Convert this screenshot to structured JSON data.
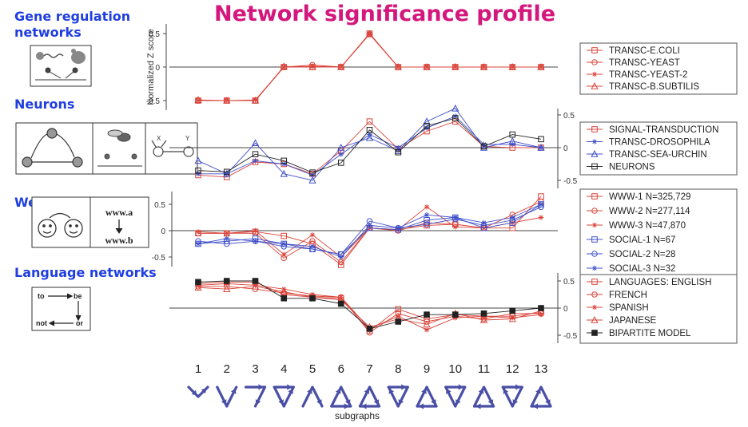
{
  "title": "Network significance profile",
  "categories": [
    {
      "label_lines": [
        "Gene regulation",
        "networks"
      ]
    },
    {
      "label_lines": [
        "Neurons"
      ]
    },
    {
      "label_lines": [
        "Web and social"
      ]
    },
    {
      "label_lines": [
        "Language networks"
      ]
    }
  ],
  "icon_text": {
    "www_top": "www.a",
    "www_bottom": "www.b",
    "lang_to": "to",
    "lang_be": "be",
    "lang_not": "not",
    "lang_or": "or",
    "neuron_x": "X",
    "neuron_y": "Y"
  },
  "colors": {
    "title": "#d4177c",
    "category": "#1f3ee0",
    "red": "#d9443a",
    "blue": "#3f4fc8",
    "black": "#222222",
    "axis": "#444444"
  },
  "chart_data": [
    {
      "type": "line",
      "panel": "Gene regulation networks",
      "ylabel": "Normalized Z score",
      "ylim": [
        -0.6,
        0.6
      ],
      "yticks": [
        -0.5,
        0,
        0.5
      ],
      "x": [
        1,
        2,
        3,
        4,
        5,
        6,
        7,
        8,
        9,
        10,
        11,
        12,
        13
      ],
      "legend_position": "right",
      "series": [
        {
          "name": "TRANSC-E.COLI",
          "marker": "square",
          "color": "#d9443a",
          "values": [
            -0.5,
            -0.5,
            -0.5,
            0,
            0,
            0,
            0.5,
            0,
            0,
            0,
            0,
            0,
            0
          ]
        },
        {
          "name": "TRANSC-YEAST",
          "marker": "circle",
          "color": "#d9443a",
          "values": [
            -0.5,
            -0.5,
            -0.5,
            0,
            0.03,
            0,
            0.49,
            0,
            0,
            0,
            0,
            0,
            0
          ]
        },
        {
          "name": "TRANSC-YEAST-2",
          "marker": "star",
          "color": "#d9443a",
          "values": [
            -0.5,
            -0.5,
            -0.49,
            0,
            0.01,
            0,
            0.5,
            0,
            0,
            0,
            0,
            0,
            0
          ]
        },
        {
          "name": "TRANSC-B.SUBTILIS",
          "marker": "triangle",
          "color": "#d9443a",
          "values": [
            -0.49,
            -0.5,
            -0.5,
            0.01,
            0,
            0,
            0.49,
            0,
            0,
            0,
            0,
            0,
            0
          ]
        }
      ]
    },
    {
      "type": "line",
      "panel": "Neurons",
      "ylim": [
        -0.55,
        0.6
      ],
      "yticks": [
        -0.5,
        0,
        0.5
      ],
      "x": [
        1,
        2,
        3,
        4,
        5,
        6,
        7,
        8,
        9,
        10,
        11,
        12,
        13
      ],
      "legend_position": "right",
      "series": [
        {
          "name": "SIGNAL-TRANSDUCTION",
          "marker": "square",
          "color": "#d9443a",
          "values": [
            -0.42,
            -0.45,
            -0.22,
            -0.25,
            -0.4,
            -0.05,
            0.4,
            -0.02,
            0.25,
            0.4,
            0.02,
            0,
            0
          ]
        },
        {
          "name": "TRANSC-DROSOPHILA",
          "marker": "star",
          "color": "#3f4fc8",
          "values": [
            -0.4,
            -0.4,
            -0.2,
            -0.25,
            -0.42,
            -0.1,
            0.2,
            0,
            0.3,
            0.48,
            0.05,
            0.05,
            0
          ]
        },
        {
          "name": "TRANSC-SEA-URCHIN",
          "marker": "triangle",
          "color": "#3f4fc8",
          "values": [
            -0.2,
            -0.4,
            0.07,
            -0.4,
            -0.5,
            0,
            0.15,
            -0.05,
            0.4,
            0.6,
            0,
            0.1,
            0
          ]
        },
        {
          "name": "NEURONS",
          "marker": "square",
          "color": "#222222",
          "values": [
            -0.35,
            -0.37,
            -0.1,
            -0.2,
            -0.38,
            -0.23,
            0.27,
            -0.07,
            0.33,
            0.45,
            0.02,
            0.2,
            0.13
          ]
        }
      ]
    },
    {
      "type": "line",
      "panel": "Web and social",
      "ylim": [
        -0.65,
        0.8
      ],
      "yticks": [
        -0.5,
        0,
        0.5
      ],
      "x": [
        1,
        2,
        3,
        4,
        5,
        6,
        7,
        8,
        9,
        10,
        11,
        12,
        13
      ],
      "legend_position": "right",
      "series": [
        {
          "name": "WWW-1 N=325,729",
          "marker": "square",
          "color": "#d9443a",
          "values": [
            -0.05,
            -0.05,
            -0.02,
            -0.1,
            -0.25,
            -0.65,
            0.05,
            0.02,
            0.1,
            0.12,
            0.05,
            0.05,
            0.65
          ]
        },
        {
          "name": "WWW-2 N=277,114",
          "marker": "circle",
          "color": "#d9443a",
          "values": [
            -0.05,
            -0.05,
            -0.05,
            -0.52,
            -0.2,
            -0.6,
            0.05,
            0,
            0.15,
            0.12,
            0.05,
            0.3,
            0.55
          ]
        },
        {
          "name": "WWW-3 N=47,870",
          "marker": "star",
          "color": "#d9443a",
          "values": [
            -0.02,
            -0.05,
            0,
            -0.45,
            -0.08,
            -0.5,
            0.05,
            0.02,
            0.45,
            0.07,
            0.05,
            0.15,
            0.25
          ]
        },
        {
          "name": "SOCIAL-1 N=67",
          "marker": "square",
          "color": "#3f4fc8",
          "values": [
            -0.25,
            -0.2,
            -0.15,
            -0.25,
            -0.35,
            -0.45,
            0.05,
            0.02,
            0.2,
            0.25,
            0.05,
            0.15,
            0.5
          ]
        },
        {
          "name": "SOCIAL-2 N=28",
          "marker": "circle",
          "color": "#3f4fc8",
          "values": [
            -0.2,
            -0.25,
            -0.2,
            -0.3,
            -0.35,
            -0.45,
            0.18,
            0.05,
            0.12,
            0.22,
            0.1,
            0.2,
            0.45
          ]
        },
        {
          "name": "SOCIAL-3 N=32",
          "marker": "star",
          "color": "#3f4fc8",
          "values": [
            -0.25,
            -0.15,
            -0.2,
            -0.25,
            -0.3,
            -0.5,
            0.1,
            0.05,
            0.3,
            0.25,
            0.15,
            0.25,
            0.5
          ]
        }
      ]
    },
    {
      "type": "line",
      "panel": "Language networks",
      "ylim": [
        -0.55,
        0.6
      ],
      "yticks": [
        -0.5,
        0,
        0.5
      ],
      "x": [
        1,
        2,
        3,
        4,
        5,
        6,
        7,
        8,
        9,
        10,
        11,
        12,
        13
      ],
      "xlabel": "subgraphs",
      "xtick_labels": [
        "1",
        "2",
        "3",
        "4",
        "5",
        "6",
        "7",
        "8",
        "9",
        "10",
        "11",
        "12",
        "13"
      ],
      "legend_position": "right",
      "series": [
        {
          "name": "LANGUAGES: ENGLISH",
          "marker": "square",
          "color": "#d9443a",
          "values": [
            0.45,
            0.48,
            0.48,
            0.25,
            0.2,
            0.18,
            -0.42,
            -0.02,
            -0.2,
            -0.12,
            -0.15,
            -0.15,
            -0.08
          ]
        },
        {
          "name": "FRENCH",
          "marker": "circle",
          "color": "#d9443a",
          "values": [
            0.4,
            0.4,
            0.35,
            0.28,
            0.22,
            0.2,
            -0.45,
            -0.1,
            -0.25,
            -0.15,
            -0.2,
            -0.1,
            -0.1
          ]
        },
        {
          "name": "SPANISH",
          "marker": "star",
          "color": "#d9443a",
          "values": [
            0.42,
            0.45,
            0.42,
            0.35,
            0.25,
            0.2,
            -0.38,
            -0.15,
            -0.4,
            -0.18,
            -0.15,
            -0.18,
            -0.12
          ]
        },
        {
          "name": "JAPANESE",
          "marker": "triangle",
          "color": "#d9443a",
          "values": [
            0.38,
            0.35,
            0.4,
            0.3,
            0.2,
            0.15,
            -0.35,
            -0.2,
            -0.3,
            -0.1,
            -0.22,
            -0.2,
            -0.05
          ]
        },
        {
          "name": "BIPARTITE MODEL",
          "marker": "filled-square",
          "color": "#222222",
          "values": [
            0.48,
            0.5,
            0.5,
            0.18,
            0.18,
            0.08,
            -0.38,
            -0.25,
            -0.12,
            -0.12,
            -0.1,
            -0.05,
            0
          ]
        }
      ]
    }
  ]
}
